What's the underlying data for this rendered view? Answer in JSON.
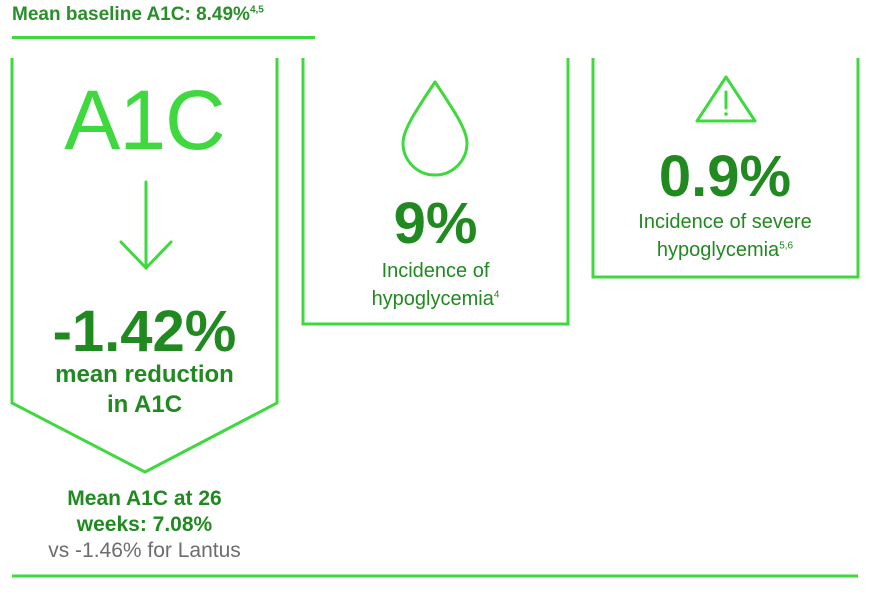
{
  "header": {
    "text": "Mean baseline A1C: 8.49%",
    "footnote": "4,5"
  },
  "panel_a1c": {
    "label": "A1C",
    "reduction_value": "-1.42%",
    "reduction_line1": "mean reduction",
    "reduction_line2": "in A1C",
    "result_line1": "Mean A1C at 26",
    "result_line2": "weeks: 7.08%",
    "comparison": "vs -1.46% for Lantus",
    "icon": "down-arrow-icon"
  },
  "panel_hypoglycemia": {
    "value": "9%",
    "line1": "Incidence of",
    "line2": "hypoglycemia",
    "footnote": "4",
    "icon": "droplet-icon"
  },
  "panel_severe": {
    "value": "0.9%",
    "line1": "Incidence of severe",
    "line2": "hypoglycemia",
    "footnote": "5,6",
    "icon": "warning-icon"
  },
  "colors": {
    "bright_green": "#3fd93f",
    "dark_green": "#208a20",
    "gray": "#6d6d6d"
  }
}
